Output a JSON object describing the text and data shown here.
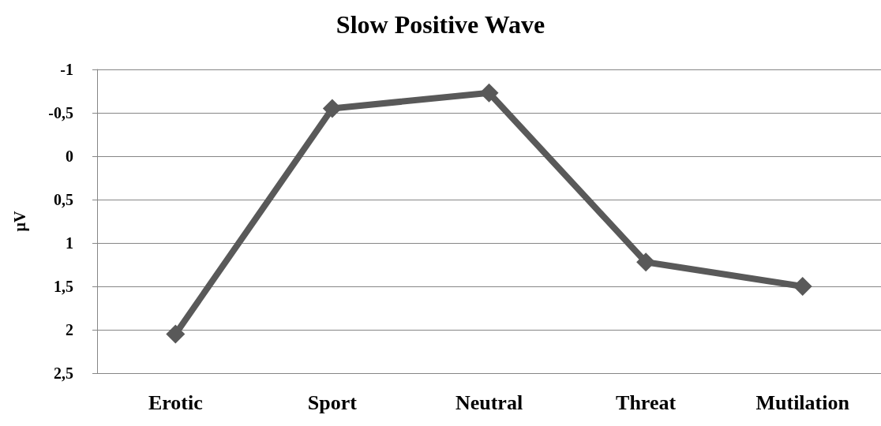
{
  "chart_data": {
    "type": "line",
    "title": "Slow Positive Wave",
    "ylabel": "µV",
    "categories": [
      "Erotic",
      "Sport",
      "Neutral",
      "Threat",
      "Mutilation"
    ],
    "series": [
      {
        "color": "#595959",
        "values": [
          2.05,
          -0.55,
          -0.73,
          1.22,
          1.5
        ]
      }
    ],
    "ylim": [
      2.5,
      -1
    ],
    "yticks": [
      {
        "value": -1,
        "label": "-1"
      },
      {
        "value": -0.5,
        "label": "-0,5"
      },
      {
        "value": 0,
        "label": "0"
      },
      {
        "value": 0.5,
        "label": "0,5"
      },
      {
        "value": 1,
        "label": "1"
      },
      {
        "value": 1.5,
        "label": "1,5"
      },
      {
        "value": 2,
        "label": "2"
      },
      {
        "value": 2.5,
        "label": "2,5"
      }
    ],
    "grid": "y",
    "marker": "diamond",
    "line_style": "solid"
  }
}
